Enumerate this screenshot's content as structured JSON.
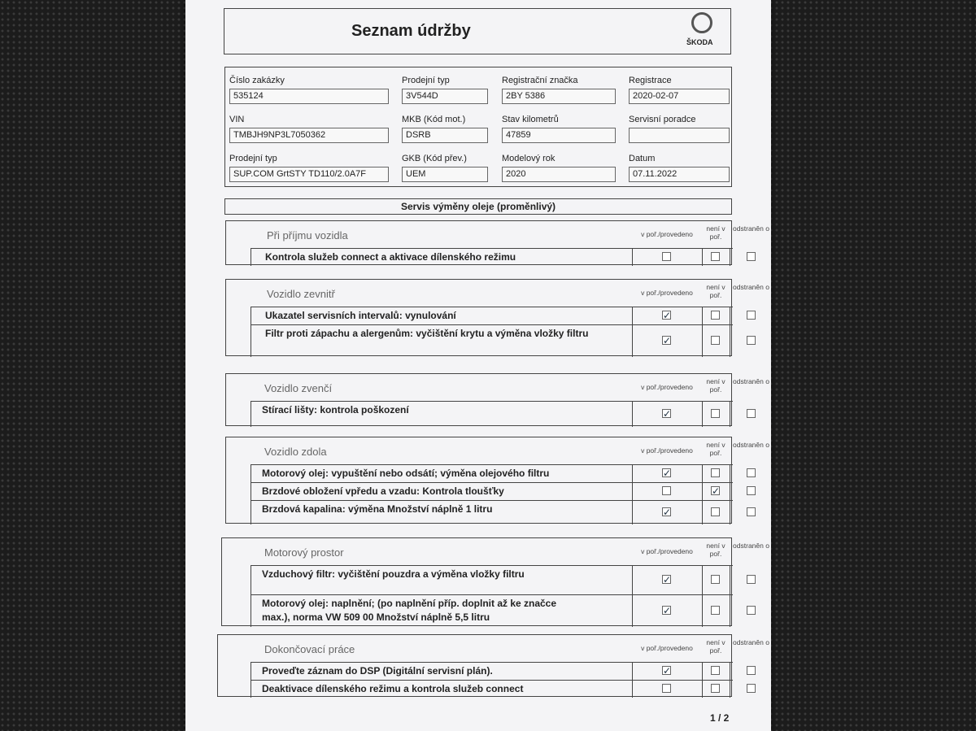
{
  "header": {
    "title": "Seznam údržby",
    "brand": "ŠKODA"
  },
  "fields": [
    {
      "label": "Číslo zakázky",
      "value": "535124"
    },
    {
      "label": "Prodejní typ",
      "value": "3V544D"
    },
    {
      "label": "Registrační značka",
      "value": "2BY 5386"
    },
    {
      "label": "Registrace",
      "value": "2020-02-07"
    },
    {
      "label": "VIN",
      "value": "TMBJH9NP3L7050362"
    },
    {
      "label": "MKB (Kód mot.)",
      "value": "DSRB"
    },
    {
      "label": "Stav kilometrů",
      "value": "47859"
    },
    {
      "label": "Servisní poradce"
    },
    {
      "label": "Prodejní typ",
      "value": "SUP.COM GrtSTY TD110/2.0A7F"
    },
    {
      "label": "GKB (Kód přev.)",
      "value": "UEM"
    },
    {
      "label": "Modelový rok",
      "value": "2020"
    },
    {
      "label": "Datum",
      "value": "07.11.2022"
    }
  ],
  "section_title": "Servis výměny oleje (proměnlivý)",
  "columns": [
    "v poř./provedeno",
    "není v poř.",
    "odstraněn o"
  ],
  "groups": [
    {
      "title": "Při příjmu vozidla",
      "items": [
        {
          "text": "Kontrola služeb connect a aktivace dílenského režimu",
          "checked": [
            false,
            false,
            false
          ]
        }
      ]
    },
    {
      "title": "Vozidlo zevnitř",
      "items": [
        {
          "text": "Ukazatel servisních intervalů: vynulování",
          "checked": [
            true,
            false,
            false
          ]
        },
        {
          "text": "Filtr proti zápachu a alergenům: vyčištění krytu a výměna vložky filtru",
          "checked": [
            true,
            false,
            false
          ]
        }
      ]
    },
    {
      "title": "Vozidlo zvenčí",
      "items": [
        {
          "text": "Stírací lišty: kontrola poškození",
          "checked": [
            true,
            false,
            false
          ]
        }
      ]
    },
    {
      "title": "Vozidlo zdola",
      "items": [
        {
          "text": "Motorový olej: vypuštění nebo odsátí; výměna olejového filtru",
          "checked": [
            true,
            false,
            false
          ]
        },
        {
          "text": "Brzdové obložení vpředu a vzadu: Kontrola tloušťky",
          "checked": [
            false,
            true,
            false
          ]
        },
        {
          "text": "Brzdová kapalina: výměna Množství náplně 1 litru",
          "checked": [
            true,
            false,
            false
          ]
        }
      ]
    },
    {
      "title": "Motorový prostor",
      "items": [
        {
          "text": "Vzduchový filtr: vyčištění pouzdra a výměna vložky filtru",
          "checked": [
            true,
            false,
            false
          ]
        },
        {
          "text": "Motorový olej: naplnění; (po naplnění příp. doplnit až ke značce max.), norma VW 509 00 Množství náplně 5,5 litru",
          "checked": [
            true,
            false,
            false
          ]
        }
      ]
    },
    {
      "title": "Dokončovací práce",
      "items": [
        {
          "text": "Proveďte záznam do DSP (Digitální servisní plán).",
          "checked": [
            true,
            false,
            false
          ]
        },
        {
          "text": "Deaktivace dílenského režimu a kontrola služeb connect",
          "checked": [
            false,
            false,
            false
          ]
        }
      ]
    }
  ],
  "page": "1 / 2"
}
